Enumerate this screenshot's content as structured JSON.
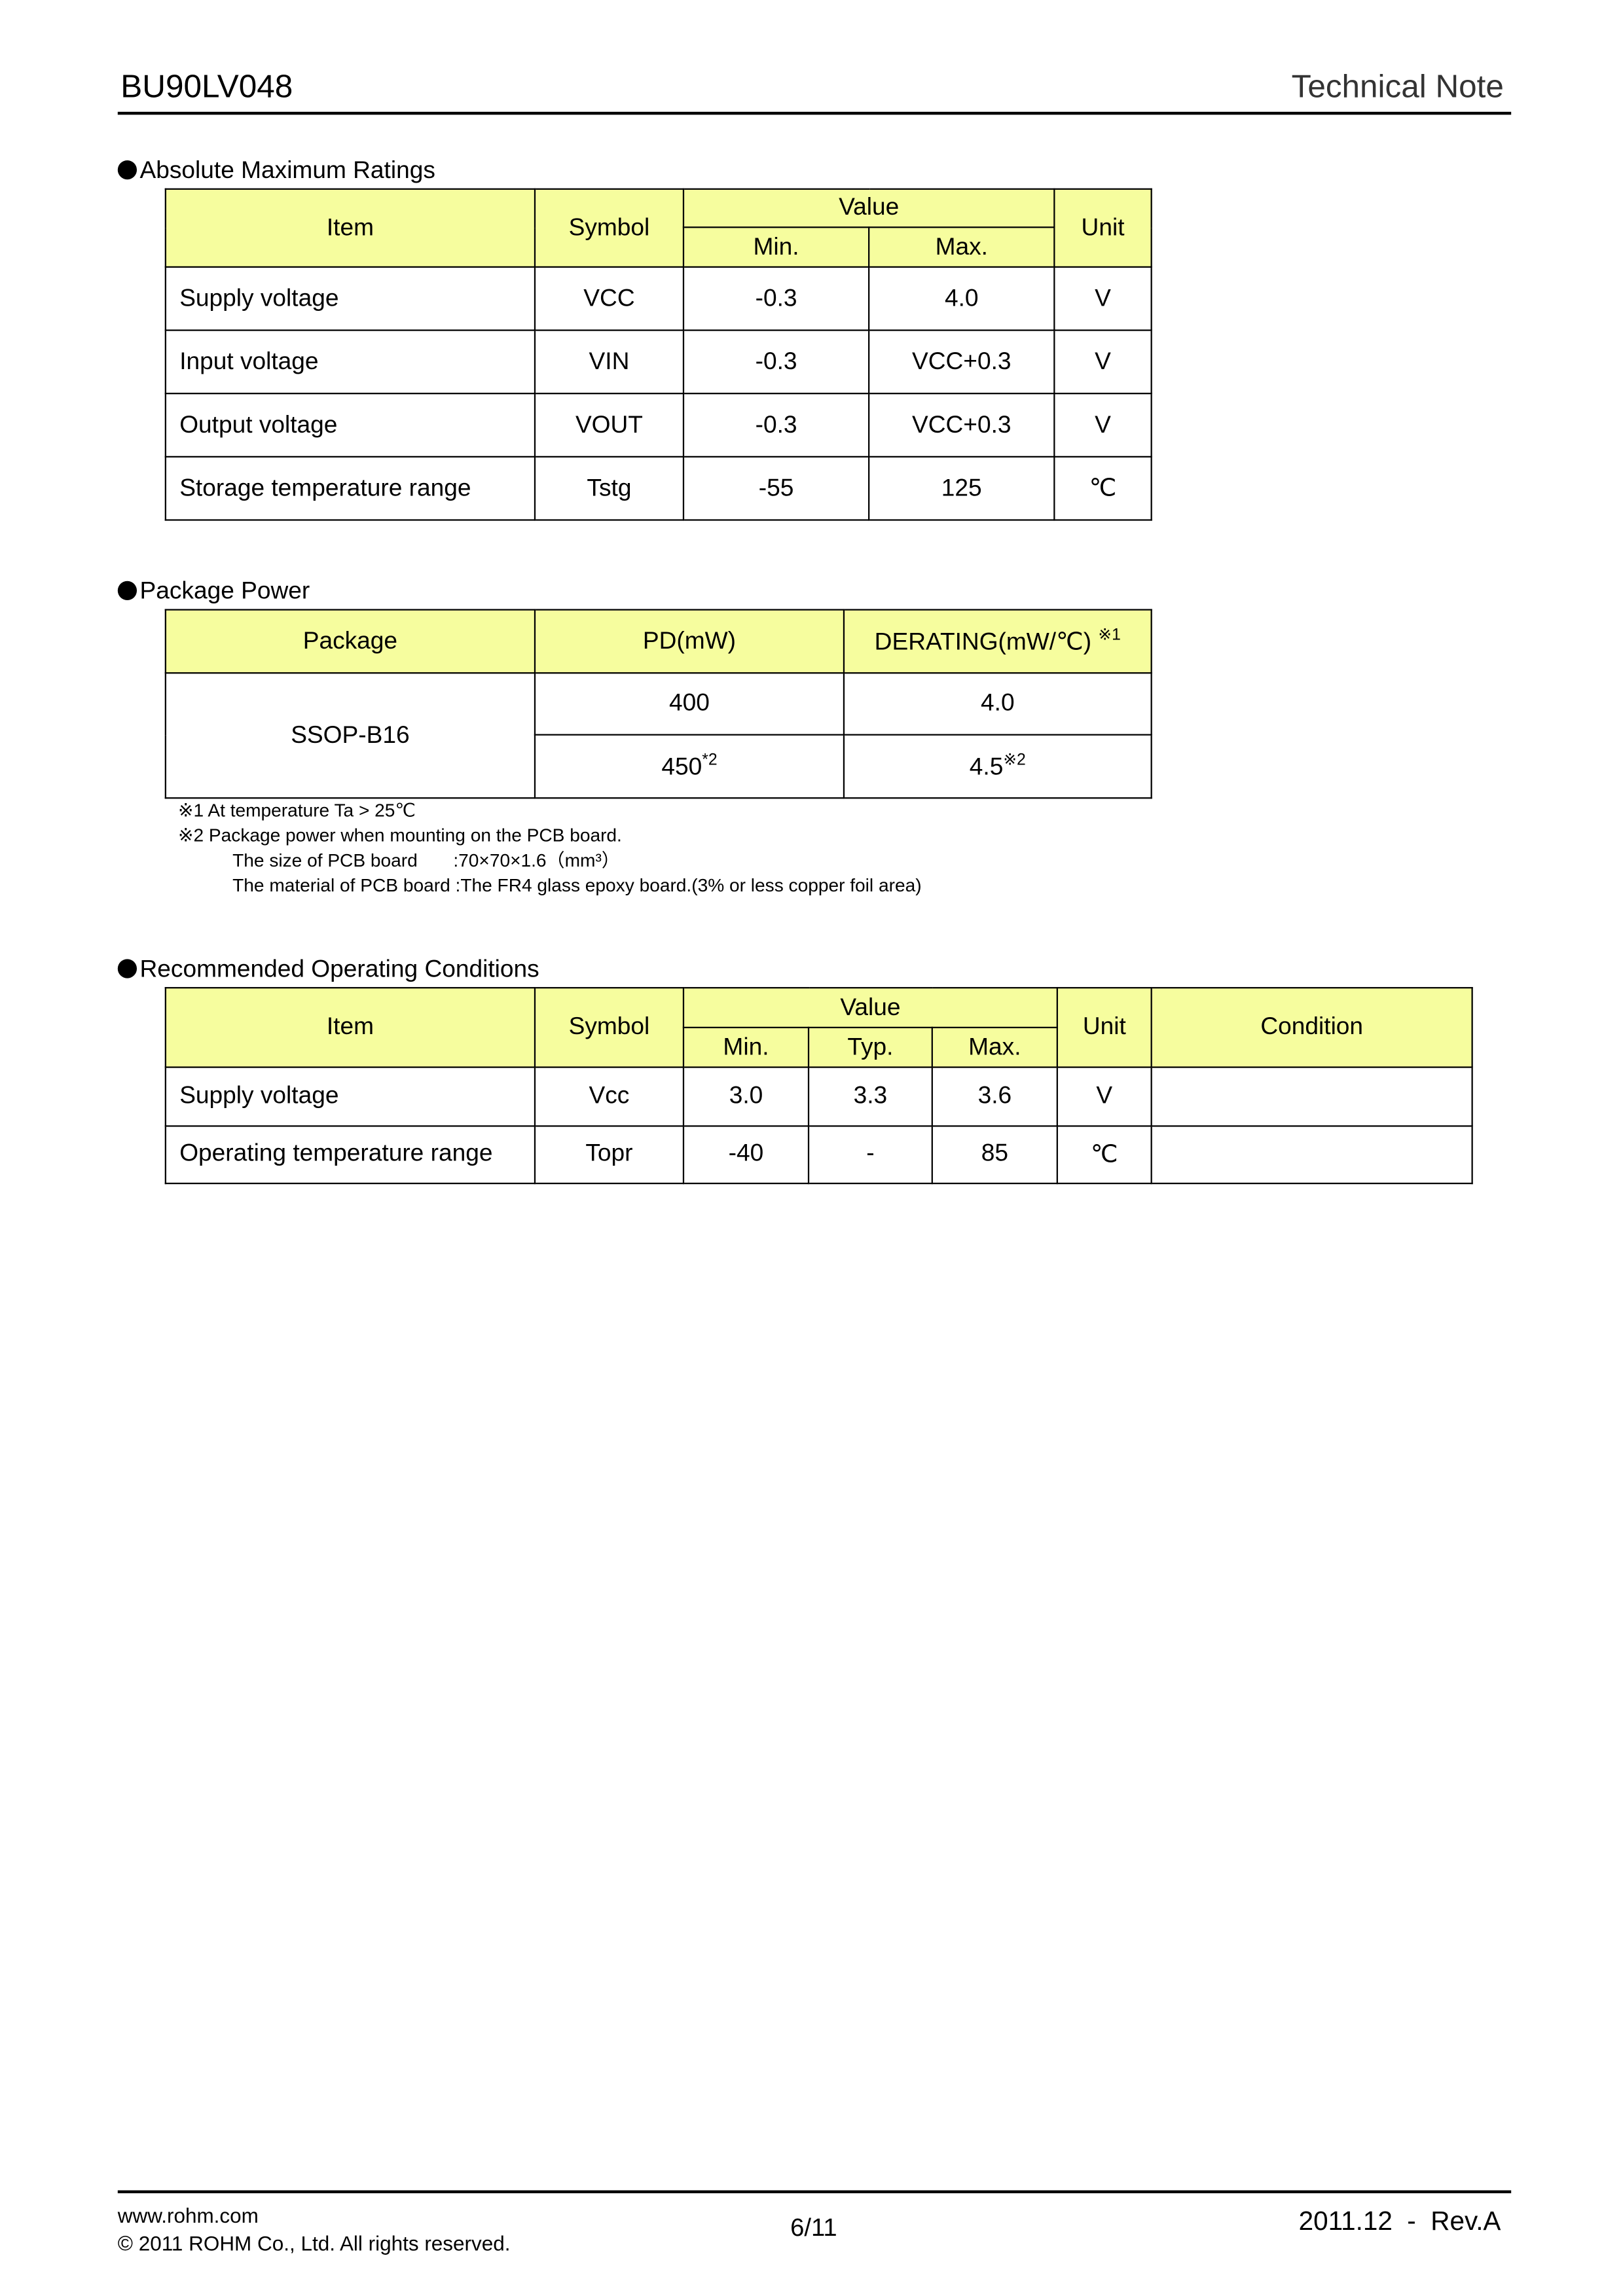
{
  "header": {
    "title": "BU90LV048",
    "right": "Technical Note"
  },
  "abs_max": {
    "title": "Absolute Maximum Ratings",
    "headers": {
      "item": "Item",
      "symbol": "Symbol",
      "value": "Value",
      "min": "Min.",
      "max": "Max.",
      "unit": "Unit"
    },
    "rows": [
      {
        "item": "Supply voltage",
        "symbol": "VCC",
        "min": "-0.3",
        "max": "4.0",
        "unit": "V"
      },
      {
        "item": "Input voltage",
        "symbol": "VIN",
        "min": "-0.3",
        "max": "VCC+0.3",
        "unit": "V"
      },
      {
        "item": "Output voltage",
        "symbol": "VOUT",
        "min": "-0.3",
        "max": "VCC+0.3",
        "unit": "V"
      },
      {
        "item": "Storage temperature range",
        "symbol": "Tstg",
        "min": "-55",
        "max": "125",
        "unit": "℃"
      }
    ]
  },
  "pkg": {
    "title": "Package Power",
    "headers": {
      "package": "Package",
      "pd": "PD(mW)",
      "derating": "DERATING(mW/℃)",
      "derating_mark": "※1"
    },
    "package": "SSOP-B16",
    "rows": [
      {
        "pd": "400",
        "pd_mark": "",
        "derating": "4.0",
        "derating_mark": ""
      },
      {
        "pd": "450",
        "pd_mark": "*2",
        "derating": "4.5",
        "derating_mark": "※2"
      }
    ],
    "notes": [
      "※1 At temperature Ta > 25℃",
      "※2 Package power when mounting on the PCB board.",
      "The size of PCB board       :70×70×1.6（mm³）",
      "The material of PCB board :The FR4 glass epoxy board.(3% or less copper foil area)"
    ]
  },
  "roc": {
    "title": "Recommended Operating Conditions",
    "headers": {
      "item": "Item",
      "symbol": "Symbol",
      "value": "Value",
      "min": "Min.",
      "typ": "Typ.",
      "max": "Max.",
      "unit": "Unit",
      "condition": "Condition"
    },
    "rows": [
      {
        "item": "Supply voltage",
        "symbol": "Vcc",
        "min": "3.0",
        "typ": "3.3",
        "max": "3.6",
        "unit": "V",
        "condition": ""
      },
      {
        "item": "Operating temperature range",
        "symbol": "Topr",
        "min": "-40",
        "typ": "-",
        "max": "85",
        "unit": "℃",
        "condition": ""
      }
    ]
  },
  "footer": {
    "url": "www.rohm.com",
    "copyright": "© 2011 ROHM Co., Ltd. All rights reserved.",
    "page": "6/11",
    "rev": "2011.12  -  Rev.A"
  },
  "colors": {
    "header_fill": "#f6fd9e"
  }
}
